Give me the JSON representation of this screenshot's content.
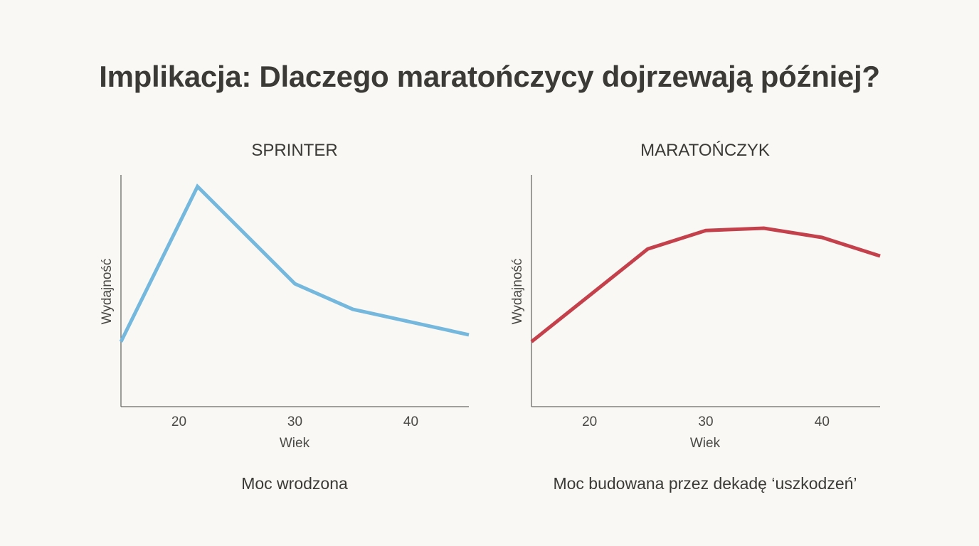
{
  "page": {
    "title": "Implikacja: Dlaczego maratończycy dojrzewają później?"
  },
  "chart_data": [
    {
      "type": "line",
      "title": "SPRINTER",
      "xlabel": "Wiek",
      "ylabel": "Wydajność",
      "caption": "Moc wrodzona",
      "xlim": [
        15,
        45
      ],
      "ylim": [
        0,
        100
      ],
      "xticks": [
        20,
        30,
        40
      ],
      "grid": false,
      "color": "#74b8de",
      "series": [
        {
          "x": [
            15,
            21.6,
            30,
            35,
            45
          ],
          "y": [
            28,
            95,
            53,
            42,
            31
          ]
        }
      ]
    },
    {
      "type": "line",
      "title": "MARATOŃCZYK",
      "xlabel": "Wiek",
      "ylabel": "Wydajność",
      "caption": "Moc budowana przez dekadę ‘uszkodzeń’",
      "xlim": [
        15,
        45
      ],
      "ylim": [
        0,
        100
      ],
      "xticks": [
        20,
        30,
        40
      ],
      "grid": false,
      "color": "#c4404b",
      "series": [
        {
          "x": [
            15,
            20,
            25,
            30,
            35,
            40,
            45
          ],
          "y": [
            28,
            48,
            68,
            76,
            77,
            73,
            65
          ]
        }
      ]
    }
  ]
}
